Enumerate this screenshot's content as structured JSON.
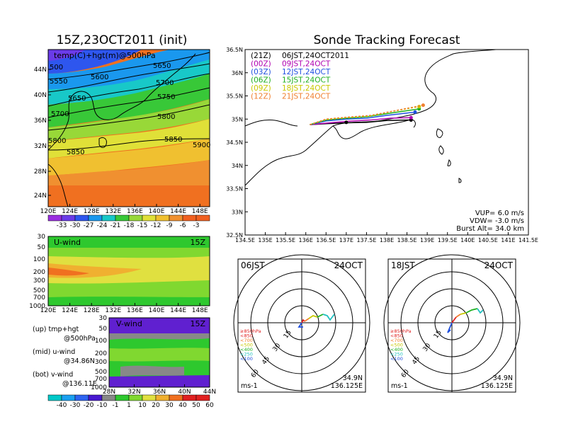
{
  "left_title": "15Z,23OCT2011 (init)",
  "right_title": "Sonde Tracking Forecast",
  "colors": {
    "temp": [
      "#9a2ee0",
      "#6a3be8",
      "#2e56ee",
      "#1a98ee",
      "#18c8c8",
      "#38c838",
      "#98d838",
      "#e0e038",
      "#f0c030",
      "#f09030",
      "#f06020"
    ],
    "wind": [
      "#00c8c8",
      "#1aa0f0",
      "#2e64f0",
      "#4818d0",
      "#888888",
      "#2ec82e",
      "#80d830",
      "#e0e040",
      "#f0b030",
      "#f07020",
      "#e02020"
    ],
    "track": {
      "21Z": "#000000",
      "00Z": "#b000b0",
      "03Z": "#2050e0",
      "06Z": "#20b020",
      "09Z": "#c8c800",
      "12Z": "#f08030"
    },
    "hodo": {
      "850": "#e02020",
      "700": "#f08030",
      "500": "#c8c800",
      "400": "#20b020",
      "250": "#20c0c0",
      "100": "#2050e0"
    }
  },
  "temp_map": {
    "label": "temp(C)+hgt(m)@500hPa",
    "lat_labels": [
      "44N",
      "40N",
      "36N",
      "32N",
      "28N",
      "24N"
    ],
    "lon_labels": [
      "120E",
      "124E",
      "128E",
      "132E",
      "136E",
      "140E",
      "144E",
      "148E"
    ],
    "contours": [
      "500",
      "5550",
      "5600",
      "5650",
      "5650",
      "5700",
      "5700",
      "5750",
      "5800",
      "5800",
      "5850",
      "5850",
      "5900"
    ],
    "colorbar": [
      "-33",
      "-30",
      "-27",
      "-24",
      "-21",
      "-18",
      "-15",
      "-12",
      "-9",
      "-6",
      "-3"
    ]
  },
  "uwind": {
    "label": "U-wind",
    "time": "15Z",
    "p_labels": [
      "30",
      "50",
      "100",
      "200",
      "300",
      "500",
      "700",
      "1000"
    ],
    "lon_labels": [
      "120E",
      "124E",
      "128E",
      "132E",
      "136E",
      "140E",
      "144E",
      "148E"
    ]
  },
  "vwind": {
    "label": "V-wind",
    "time": "15Z",
    "p_labels": [
      "30",
      "50",
      "100",
      "200",
      "300",
      "500",
      "700",
      "1000"
    ],
    "lat_labels": [
      "28N",
      "32N",
      "36N",
      "40N",
      "44N"
    ],
    "colorbar": [
      "-40",
      "-30",
      "-20",
      "-10",
      "-1",
      "1",
      "10",
      "20",
      "30",
      "40",
      "50",
      "60"
    ]
  },
  "legend_left": {
    "up": "(up) tmp+hgt",
    "up2": "@500hPa",
    "mid": "(mid) u-wind",
    "mid2": "@34.86N",
    "bot": "(bot) v-wind",
    "bot2": "@136.11E"
  },
  "track_map": {
    "lat_labels": [
      "36.5N",
      "36N",
      "35.5N",
      "35N",
      "34.5N",
      "34N",
      "33.5N",
      "33N",
      "32.5N"
    ],
    "lon_labels": [
      "134.5E",
      "135E",
      "135.5E",
      "136E",
      "136.5E",
      "137E",
      "137.5E",
      "138E",
      "138.5E",
      "139E",
      "139.5E",
      "140E",
      "140.5E",
      "141E",
      "141.5E"
    ],
    "legend": [
      {
        "z": "(21Z)",
        "t": "06JST,24OCT2011"
      },
      {
        "z": "(00Z)",
        "t": "09JST,24OCT"
      },
      {
        "z": "(03Z)",
        "t": "12JST,24OCT"
      },
      {
        "z": "(06Z)",
        "t": "15JST,24OCT"
      },
      {
        "z": "(09Z)",
        "t": "18JST,24OCT"
      },
      {
        "z": "(12Z)",
        "t": "21JST,24OCT"
      }
    ],
    "vup": "VUP= 6.0 m/s",
    "vdw": "VDW= -3.0 m/s",
    "burst": "Burst Alt= 34.0 km"
  },
  "hodo_left": {
    "time": "06JST",
    "date": "24OCT",
    "lat": "34.9N",
    "lon": "136.125E",
    "units": "ms-1"
  },
  "hodo_right": {
    "time": "18JST",
    "date": "24OCT",
    "lat": "34.9N",
    "lon": "136.125E",
    "units": "ms-1"
  },
  "hodo_rings": [
    "15",
    "30",
    "45",
    "60"
  ],
  "hodo_legend": [
    "≥850hPa",
    "<850",
    "<700",
    "<500",
    "<400",
    "<250",
    "<100"
  ],
  "chart_data": [
    {
      "type": "table",
      "title": "Sonde Tracking Forecast",
      "series": [
        {
          "name": "(21Z) 06JST,24OCT2011",
          "x": [
            136.1,
            136.5,
            137.0,
            137.5,
            138.0,
            138.6
          ],
          "y": [
            34.88,
            34.9,
            34.92,
            34.93,
            34.97,
            34.98
          ]
        },
        {
          "name": "(00Z) 09JST,24OCT",
          "x": [
            136.1,
            136.6,
            137.0,
            137.6,
            138.1,
            138.6
          ],
          "y": [
            34.88,
            34.92,
            34.95,
            34.98,
            35.02,
            35.03
          ]
        },
        {
          "name": "(03Z) 12JST,24OCT",
          "x": [
            136.1,
            136.5,
            137.0,
            137.5,
            138.0,
            138.7
          ],
          "y": [
            34.88,
            34.96,
            35.0,
            35.02,
            35.08,
            35.15
          ]
        },
        {
          "name": "(06Z) 15JST,24OCT",
          "x": [
            136.1,
            136.5,
            137.0,
            137.5,
            138.1,
            138.8
          ],
          "y": [
            34.88,
            34.98,
            35.02,
            35.05,
            35.13,
            35.22
          ]
        },
        {
          "name": "(09Z) 18JST,24OCT",
          "x": [
            136.1,
            136.5,
            137.0,
            137.6,
            138.1,
            138.8
          ],
          "y": [
            34.88,
            34.99,
            35.03,
            35.07,
            35.16,
            35.27
          ]
        },
        {
          "name": "(12Z) 21JST,24OCT",
          "x": [
            136.1,
            136.5,
            137.0,
            137.6,
            138.2,
            138.9
          ],
          "y": [
            34.88,
            35.0,
            35.04,
            35.08,
            35.18,
            35.3
          ]
        }
      ],
      "xlim": [
        134.5,
        141.5
      ],
      "ylim": [
        32.5,
        36.5
      ]
    }
  ]
}
